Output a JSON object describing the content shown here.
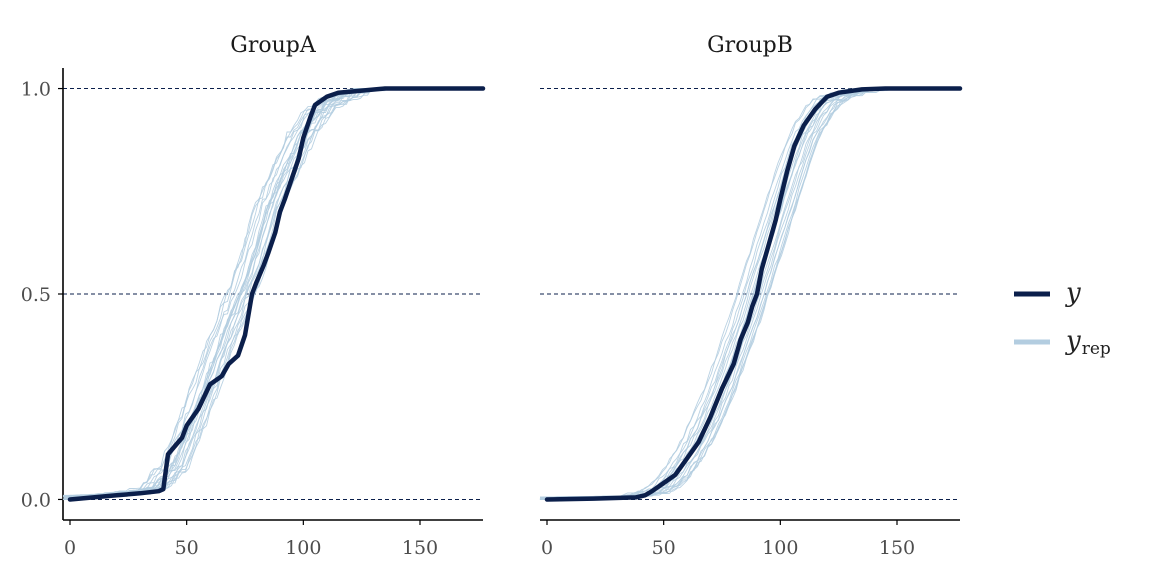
{
  "chart_data": {
    "type": "line",
    "facets": [
      {
        "title": "GroupA",
        "y": [
          [
            0,
            0.0
          ],
          [
            10,
            0.005
          ],
          [
            20,
            0.01
          ],
          [
            30,
            0.015
          ],
          [
            38,
            0.02
          ],
          [
            40,
            0.025
          ],
          [
            42,
            0.11
          ],
          [
            45,
            0.13
          ],
          [
            48,
            0.15
          ],
          [
            50,
            0.18
          ],
          [
            55,
            0.22
          ],
          [
            60,
            0.28
          ],
          [
            65,
            0.3
          ],
          [
            68,
            0.33
          ],
          [
            72,
            0.35
          ],
          [
            75,
            0.4
          ],
          [
            78,
            0.5
          ],
          [
            80,
            0.53
          ],
          [
            83,
            0.57
          ],
          [
            85,
            0.6
          ],
          [
            88,
            0.65
          ],
          [
            90,
            0.7
          ],
          [
            92,
            0.73
          ],
          [
            95,
            0.78
          ],
          [
            98,
            0.83
          ],
          [
            100,
            0.88
          ],
          [
            103,
            0.93
          ],
          [
            105,
            0.96
          ],
          [
            110,
            0.98
          ],
          [
            115,
            0.99
          ],
          [
            125,
            0.995
          ],
          [
            135,
            1.0
          ],
          [
            177,
            1.0
          ]
        ],
        "yrep_band": [
          [
            0,
            0.0
          ],
          [
            20,
            0.005
          ],
          [
            35,
            0.02
          ],
          [
            45,
            0.08
          ],
          [
            50,
            0.15
          ],
          [
            55,
            0.22
          ],
          [
            60,
            0.3
          ],
          [
            65,
            0.38
          ],
          [
            70,
            0.45
          ],
          [
            75,
            0.52
          ],
          [
            80,
            0.6
          ],
          [
            85,
            0.7
          ],
          [
            90,
            0.77
          ],
          [
            95,
            0.83
          ],
          [
            100,
            0.89
          ],
          [
            105,
            0.93
          ],
          [
            110,
            0.96
          ],
          [
            120,
            0.985
          ],
          [
            130,
            0.995
          ],
          [
            140,
            1.0
          ],
          [
            177,
            1.0
          ]
        ],
        "yrep_spread": 0.06
      },
      {
        "title": "GroupB",
        "y": [
          [
            0,
            0.0
          ],
          [
            20,
            0.002
          ],
          [
            38,
            0.005
          ],
          [
            42,
            0.01
          ],
          [
            45,
            0.02
          ],
          [
            50,
            0.04
          ],
          [
            55,
            0.06
          ],
          [
            60,
            0.1
          ],
          [
            65,
            0.14
          ],
          [
            70,
            0.2
          ],
          [
            75,
            0.27
          ],
          [
            80,
            0.33
          ],
          [
            83,
            0.39
          ],
          [
            86,
            0.43
          ],
          [
            88,
            0.47
          ],
          [
            90,
            0.5
          ],
          [
            92,
            0.56
          ],
          [
            95,
            0.62
          ],
          [
            98,
            0.68
          ],
          [
            100,
            0.73
          ],
          [
            103,
            0.8
          ],
          [
            106,
            0.86
          ],
          [
            110,
            0.91
          ],
          [
            115,
            0.95
          ],
          [
            120,
            0.98
          ],
          [
            125,
            0.99
          ],
          [
            135,
            0.998
          ],
          [
            145,
            1.0
          ],
          [
            177,
            1.0
          ]
        ],
        "yrep_band": [
          [
            0,
            0.0
          ],
          [
            35,
            0.003
          ],
          [
            45,
            0.015
          ],
          [
            50,
            0.03
          ],
          [
            55,
            0.06
          ],
          [
            60,
            0.1
          ],
          [
            65,
            0.15
          ],
          [
            70,
            0.21
          ],
          [
            75,
            0.28
          ],
          [
            80,
            0.36
          ],
          [
            85,
            0.44
          ],
          [
            90,
            0.53
          ],
          [
            95,
            0.62
          ],
          [
            100,
            0.71
          ],
          [
            105,
            0.8
          ],
          [
            110,
            0.88
          ],
          [
            115,
            0.93
          ],
          [
            120,
            0.97
          ],
          [
            130,
            0.99
          ],
          [
            140,
            1.0
          ],
          [
            177,
            1.0
          ]
        ],
        "yrep_spread": 0.035
      }
    ],
    "xlim": [
      -3,
      177
    ],
    "ylim": [
      -0.05,
      1.05
    ],
    "x_ticks": [
      0,
      50,
      100,
      150
    ],
    "x_tick_labels": [
      "0",
      "50",
      "100",
      "150"
    ],
    "y_ticks": [
      0.0,
      0.5,
      1.0
    ],
    "y_tick_labels": [
      "0.0",
      "0.5",
      "1.0"
    ],
    "hlines": [
      0.0,
      0.5,
      1.0
    ],
    "n_yrep": 20,
    "legend": {
      "placement": "right",
      "items": [
        {
          "label": "y",
          "subscript": "",
          "color": "#0b1f4b"
        },
        {
          "label": "y",
          "subscript": "rep",
          "color": "#b3cde0"
        }
      ]
    },
    "colors": {
      "y": "#0b1f4b",
      "yrep": "#b3cde0",
      "grid": "#0b1f4b",
      "axis": "#000000"
    }
  }
}
